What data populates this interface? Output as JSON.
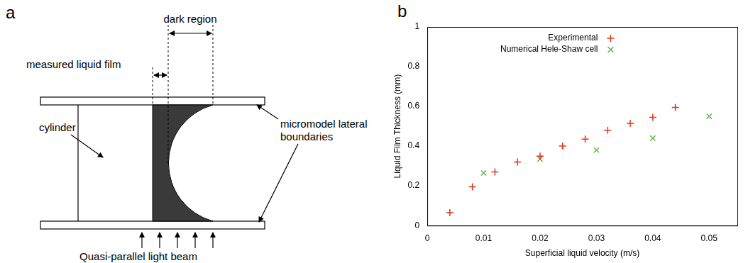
{
  "diagram": {
    "panel_label": "a",
    "labels": {
      "dark_region": "dark region",
      "measured_liquid_film": "measured liquid film",
      "cylinder": "cylinder",
      "boundaries": [
        "micromodel lateral",
        "boundaries"
      ],
      "light": "Quasi-parallel light beam"
    }
  },
  "chart_data": {
    "type": "scatter",
    "panel_label": "b",
    "x_label": "Superficial liquid velocity (m/s)",
    "y_label": "Liquid Film Thickness (mm)",
    "series": [
      {
        "name": "Experimental",
        "color": "#e8311a",
        "marker": "plus",
        "x": [
          0.004,
          0.008,
          0.012,
          0.016,
          0.02,
          0.024,
          0.028,
          0.032,
          0.036,
          0.04,
          0.044
        ],
        "values": [
          0.065,
          0.195,
          0.27,
          0.32,
          0.35,
          0.4,
          0.435,
          0.48,
          0.515,
          0.545,
          0.595
        ]
      },
      {
        "name": "Numerical Hele-Shaw cell",
        "color": "#5fb845",
        "marker": "x",
        "x": [
          0.01,
          0.02,
          0.03,
          0.04,
          0.05
        ],
        "values": [
          0.265,
          0.335,
          0.38,
          0.44,
          0.55
        ]
      }
    ],
    "xlim": [
      0,
      0.055
    ],
    "xticks": [
      0,
      0.01,
      0.02,
      0.03,
      0.04,
      0.05
    ],
    "ylim": [
      0,
      1
    ],
    "yticks": [
      0,
      0.2,
      0.4,
      0.6,
      0.8,
      1
    ],
    "grid": false,
    "legend": "upper left"
  }
}
